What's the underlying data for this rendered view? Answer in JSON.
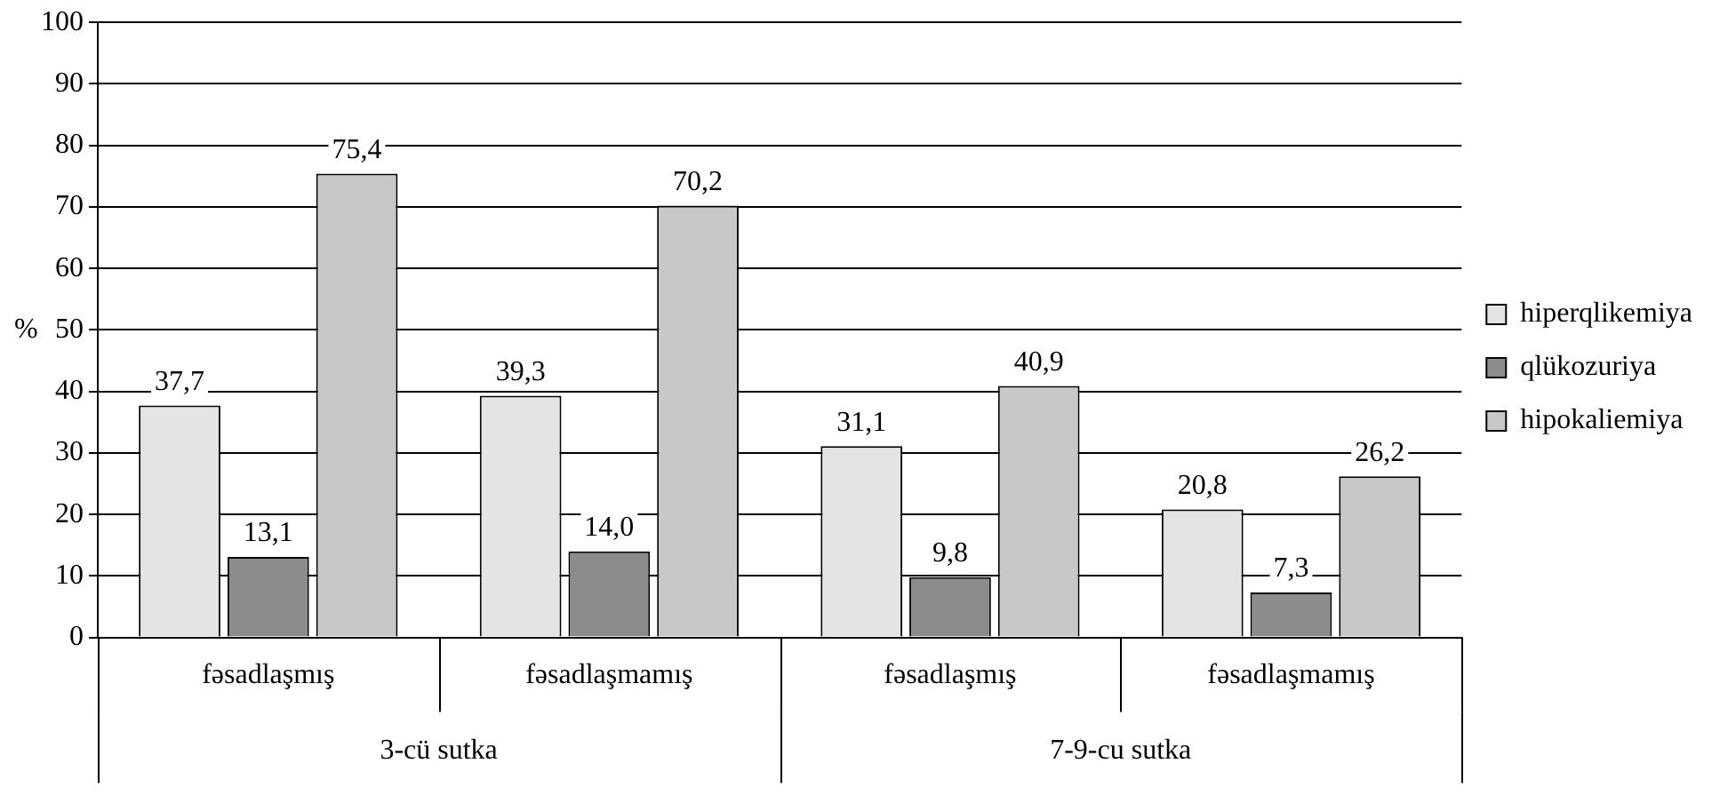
{
  "chart_data": {
    "type": "bar",
    "ylabel": "%",
    "categories": [
      "fəsadlaşmış",
      "fəsadlaşmamış",
      "fəsadlaşmış",
      "fəsadlaşmamış"
    ],
    "series": [
      {
        "name": "hiperqlikemiya",
        "color": "#e4e4e4",
        "values": [
          37.7,
          39.3,
          31.1,
          20.8
        ],
        "value_labels": [
          "37,7",
          "39,3",
          "31,1",
          "20,8"
        ]
      },
      {
        "name": "qlükozuriya",
        "color": "#8c8c8c",
        "values": [
          13.1,
          14.0,
          9.8,
          7.3
        ],
        "value_labels": [
          "13,1",
          "14,0",
          "9,8",
          "7,3"
        ]
      },
      {
        "name": "hipokaliemiya",
        "color": "#c8c8c8",
        "values": [
          75.4,
          70.2,
          40.9,
          26.2
        ],
        "value_labels": [
          "75,4",
          "70,2",
          "40,9",
          "26,2"
        ]
      }
    ],
    "annotations": [
      "3-cü sutka",
      "7-9-cu sutka"
    ],
    "ylim": [
      0,
      100
    ],
    "yticks": [
      0,
      10,
      20,
      30,
      40,
      50,
      60,
      70,
      80,
      90,
      100
    ],
    "grid": "y",
    "legend": "right"
  }
}
